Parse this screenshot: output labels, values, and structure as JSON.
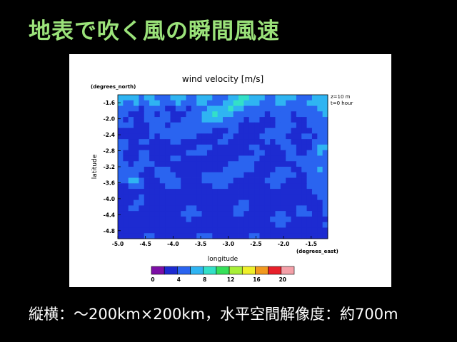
{
  "slide": {
    "title": "地表で吹く風の瞬間風速",
    "caption": "縦横：～200km×200km，水平空間解像度：約700m"
  },
  "chart_data": {
    "type": "heatmap",
    "title": "wind velocity [m/s]",
    "xlabel": "longitude",
    "ylabel": "latitude",
    "x_unit_label": "(degrees_east)",
    "y_unit_label": "(degrees_north)",
    "annotations": [
      "z=10  m",
      "t=0 hour"
    ],
    "xlim": [
      -5.0,
      -1.2
    ],
    "ylim": [
      -5.0,
      -1.4
    ],
    "x_ticks": [
      -5.0,
      -4.5,
      -4.0,
      -3.5,
      -3.0,
      -2.5,
      -2.0,
      -1.5
    ],
    "x_tick_labels": [
      "-5.0",
      "-4.5",
      "-4.0",
      "-3.5",
      "-3.0",
      "-2.5",
      "-2.0",
      "-1.5"
    ],
    "y_ticks": [
      -1.6,
      -2.0,
      -2.4,
      -2.8,
      -3.2,
      -3.6,
      -4.0,
      -4.4,
      -4.8
    ],
    "y_tick_labels": [
      "-1.6",
      "-2.0",
      "-2.4",
      "-2.8",
      "-3.2",
      "-3.6",
      "-4.0",
      "-4.4",
      "-4.8"
    ],
    "colorbar": {
      "levels": [
        0,
        2,
        4,
        6,
        8,
        10,
        12,
        14,
        16,
        18,
        20
      ],
      "tick_labels": [
        "0",
        "4",
        "8",
        "12",
        "16",
        "20"
      ],
      "tick_values": [
        0,
        4,
        8,
        12,
        16,
        20
      ],
      "colors": [
        "#7d0fa6",
        "#1d2bd1",
        "#2a64f0",
        "#2fb4f2",
        "#33e0c8",
        "#36e05a",
        "#a8ef38",
        "#efef2a",
        "#f29a1f",
        "#e8202a",
        "#f4a0a8"
      ]
    },
    "grid_note": "wind speed field, mostly 0-6 m/s",
    "field": [
      [
        3,
        3,
        3,
        3,
        2,
        3,
        3,
        2,
        2,
        2,
        3,
        3,
        3,
        2,
        2,
        3,
        3,
        3,
        2,
        2,
        2,
        3,
        3,
        4,
        4,
        3,
        3,
        3,
        2,
        2,
        3,
        3,
        3,
        3,
        2,
        2,
        2,
        3,
        3,
        3
      ],
      [
        3,
        2,
        2,
        3,
        2,
        2,
        3,
        3,
        2,
        2,
        2,
        3,
        2,
        2,
        2,
        3,
        3,
        2,
        2,
        2,
        3,
        3,
        4,
        4,
        3,
        3,
        3,
        2,
        2,
        2,
        3,
        3,
        2,
        2,
        2,
        2,
        3,
        3,
        3,
        3
      ],
      [
        2,
        2,
        2,
        2,
        1,
        2,
        2,
        2,
        2,
        1,
        1,
        2,
        2,
        1,
        2,
        2,
        2,
        3,
        3,
        3,
        3,
        4,
        3,
        3,
        2,
        2,
        2,
        2,
        2,
        2,
        2,
        2,
        2,
        2,
        2,
        2,
        2,
        2,
        3,
        3
      ],
      [
        2,
        2,
        1,
        1,
        1,
        2,
        2,
        1,
        2,
        2,
        1,
        1,
        1,
        2,
        2,
        2,
        3,
        3,
        4,
        3,
        3,
        3,
        2,
        2,
        2,
        2,
        2,
        2,
        1,
        2,
        2,
        2,
        2,
        1,
        2,
        2,
        2,
        2,
        2,
        3
      ],
      [
        2,
        1,
        2,
        1,
        1,
        2,
        2,
        2,
        2,
        2,
        1,
        1,
        2,
        2,
        2,
        2,
        3,
        3,
        3,
        3,
        2,
        2,
        2,
        2,
        1,
        2,
        2,
        1,
        1,
        1,
        2,
        2,
        2,
        1,
        1,
        1,
        2,
        2,
        2,
        2
      ],
      [
        2,
        2,
        2,
        1,
        1,
        1,
        2,
        2,
        2,
        1,
        2,
        2,
        2,
        2,
        2,
        2,
        2,
        2,
        2,
        2,
        2,
        2,
        2,
        1,
        1,
        1,
        1,
        1,
        1,
        1,
        2,
        2,
        2,
        2,
        1,
        1,
        2,
        2,
        2,
        2
      ],
      [
        1,
        1,
        1,
        1,
        1,
        1,
        2,
        2,
        2,
        2,
        2,
        2,
        2,
        2,
        2,
        2,
        2,
        2,
        1,
        1,
        1,
        2,
        2,
        1,
        1,
        1,
        1,
        1,
        2,
        2,
        2,
        2,
        2,
        1,
        1,
        1,
        1,
        2,
        2,
        2
      ],
      [
        1,
        1,
        1,
        1,
        1,
        1,
        2,
        1,
        2,
        2,
        2,
        2,
        2,
        2,
        2,
        1,
        1,
        1,
        1,
        1,
        2,
        2,
        1,
        1,
        1,
        1,
        1,
        2,
        2,
        2,
        2,
        2,
        1,
        1,
        1,
        2,
        2,
        1,
        2,
        2
      ],
      [
        2,
        2,
        1,
        1,
        2,
        2,
        1,
        1,
        1,
        1,
        2,
        2,
        1,
        1,
        1,
        1,
        1,
        1,
        1,
        2,
        2,
        1,
        1,
        1,
        1,
        1,
        1,
        1,
        2,
        1,
        2,
        2,
        2,
        1,
        1,
        1,
        1,
        2,
        2,
        2
      ],
      [
        2,
        2,
        1,
        1,
        1,
        1,
        1,
        1,
        1,
        1,
        1,
        1,
        1,
        1,
        1,
        2,
        2,
        2,
        1,
        1,
        1,
        1,
        1,
        1,
        1,
        2,
        2,
        1,
        1,
        1,
        1,
        2,
        2,
        2,
        1,
        1,
        1,
        2,
        3,
        3
      ],
      [
        2,
        1,
        1,
        1,
        2,
        2,
        1,
        1,
        1,
        1,
        1,
        1,
        1,
        2,
        2,
        2,
        2,
        1,
        1,
        1,
        1,
        1,
        1,
        1,
        1,
        1,
        2,
        2,
        1,
        1,
        1,
        1,
        2,
        2,
        1,
        1,
        2,
        2,
        3,
        2
      ],
      [
        2,
        1,
        1,
        1,
        2,
        2,
        1,
        1,
        1,
        1,
        2,
        2,
        1,
        1,
        1,
        1,
        1,
        1,
        1,
        1,
        1,
        1,
        1,
        2,
        2,
        2,
        2,
        1,
        1,
        1,
        1,
        1,
        2,
        2,
        2,
        2,
        2,
        2,
        2,
        2
      ],
      [
        2,
        2,
        1,
        2,
        2,
        2,
        2,
        1,
        1,
        1,
        1,
        1,
        1,
        1,
        1,
        1,
        1,
        1,
        1,
        1,
        1,
        2,
        2,
        2,
        2,
        2,
        1,
        1,
        1,
        1,
        1,
        1,
        1,
        1,
        2,
        2,
        2,
        2,
        2,
        2
      ],
      [
        2,
        2,
        2,
        2,
        2,
        1,
        1,
        2,
        2,
        2,
        1,
        1,
        1,
        1,
        1,
        1,
        1,
        1,
        1,
        1,
        2,
        2,
        2,
        2,
        2,
        2,
        1,
        1,
        1,
        1,
        2,
        2,
        2,
        1,
        1,
        2,
        2,
        2,
        3,
        2
      ],
      [
        2,
        2,
        2,
        2,
        1,
        1,
        1,
        2,
        2,
        2,
        2,
        1,
        1,
        1,
        1,
        1,
        2,
        2,
        2,
        2,
        2,
        2,
        2,
        2,
        1,
        1,
        1,
        1,
        1,
        2,
        2,
        2,
        2,
        2,
        1,
        1,
        2,
        2,
        2,
        2
      ],
      [
        2,
        2,
        3,
        3,
        2,
        1,
        1,
        1,
        2,
        2,
        2,
        2,
        1,
        1,
        1,
        1,
        2,
        2,
        2,
        2,
        2,
        2,
        1,
        1,
        1,
        1,
        1,
        1,
        2,
        2,
        2,
        2,
        1,
        1,
        1,
        1,
        2,
        2,
        2,
        2
      ],
      [
        1,
        1,
        2,
        2,
        2,
        1,
        1,
        1,
        1,
        2,
        2,
        2,
        1,
        1,
        1,
        1,
        1,
        1,
        2,
        2,
        2,
        1,
        1,
        1,
        1,
        1,
        1,
        1,
        1,
        2,
        2,
        1,
        1,
        1,
        1,
        1,
        2,
        2,
        2,
        2
      ],
      [
        1,
        1,
        1,
        1,
        1,
        1,
        1,
        1,
        1,
        1,
        1,
        1,
        1,
        1,
        1,
        1,
        1,
        1,
        1,
        1,
        1,
        1,
        1,
        1,
        1,
        1,
        1,
        1,
        1,
        1,
        1,
        1,
        1,
        1,
        1,
        1,
        1,
        2,
        2,
        2
      ],
      [
        1,
        1,
        1,
        1,
        2,
        1,
        1,
        1,
        1,
        1,
        1,
        1,
        1,
        1,
        1,
        1,
        1,
        1,
        1,
        1,
        1,
        1,
        1,
        1,
        1,
        1,
        1,
        1,
        1,
        1,
        1,
        1,
        1,
        1,
        1,
        1,
        1,
        1,
        2,
        2
      ],
      [
        1,
        1,
        1,
        2,
        2,
        1,
        1,
        1,
        1,
        1,
        1,
        1,
        1,
        1,
        1,
        1,
        1,
        1,
        1,
        1,
        1,
        1,
        1,
        2,
        2,
        1,
        1,
        1,
        1,
        1,
        1,
        1,
        1,
        1,
        1,
        1,
        1,
        1,
        1,
        2
      ],
      [
        1,
        1,
        2,
        2,
        1,
        1,
        1,
        1,
        1,
        1,
        1,
        1,
        1,
        2,
        2,
        1,
        1,
        1,
        1,
        1,
        1,
        1,
        2,
        2,
        2,
        1,
        1,
        1,
        1,
        1,
        1,
        1,
        1,
        1,
        2,
        2,
        1,
        1,
        1,
        2
      ],
      [
        1,
        1,
        1,
        1,
        1,
        1,
        1,
        1,
        1,
        1,
        1,
        1,
        2,
        2,
        2,
        2,
        1,
        1,
        1,
        1,
        1,
        1,
        2,
        2,
        1,
        1,
        1,
        1,
        1,
        1,
        2,
        2,
        1,
        1,
        2,
        2,
        2,
        1,
        1,
        2
      ],
      [
        1,
        1,
        1,
        1,
        1,
        1,
        1,
        1,
        1,
        1,
        1,
        1,
        1,
        2,
        1,
        1,
        1,
        1,
        1,
        1,
        1,
        1,
        1,
        1,
        1,
        1,
        1,
        1,
        1,
        2,
        2,
        2,
        2,
        1,
        1,
        1,
        1,
        1,
        1,
        1
      ],
      [
        1,
        1,
        1,
        1,
        1,
        1,
        1,
        1,
        1,
        1,
        1,
        1,
        1,
        1,
        1,
        1,
        1,
        1,
        1,
        1,
        1,
        1,
        1,
        1,
        1,
        1,
        1,
        1,
        1,
        1,
        2,
        2,
        1,
        1,
        1,
        1,
        1,
        1,
        1,
        2
      ],
      [
        1,
        1,
        1,
        1,
        1,
        1,
        1,
        1,
        1,
        1,
        1,
        1,
        1,
        1,
        1,
        1,
        1,
        1,
        1,
        1,
        1,
        1,
        1,
        1,
        1,
        1,
        1,
        1,
        1,
        1,
        1,
        1,
        1,
        1,
        1,
        1,
        1,
        1,
        1,
        1
      ],
      [
        1,
        1,
        1,
        1,
        1,
        2,
        2,
        1,
        1,
        1,
        1,
        1,
        1,
        1,
        1,
        2,
        2,
        2,
        1,
        1,
        1,
        1,
        1,
        1,
        1,
        2,
        2,
        1,
        1,
        1,
        1,
        1,
        1,
        1,
        1,
        1,
        1,
        1,
        1,
        1
      ]
    ]
  }
}
